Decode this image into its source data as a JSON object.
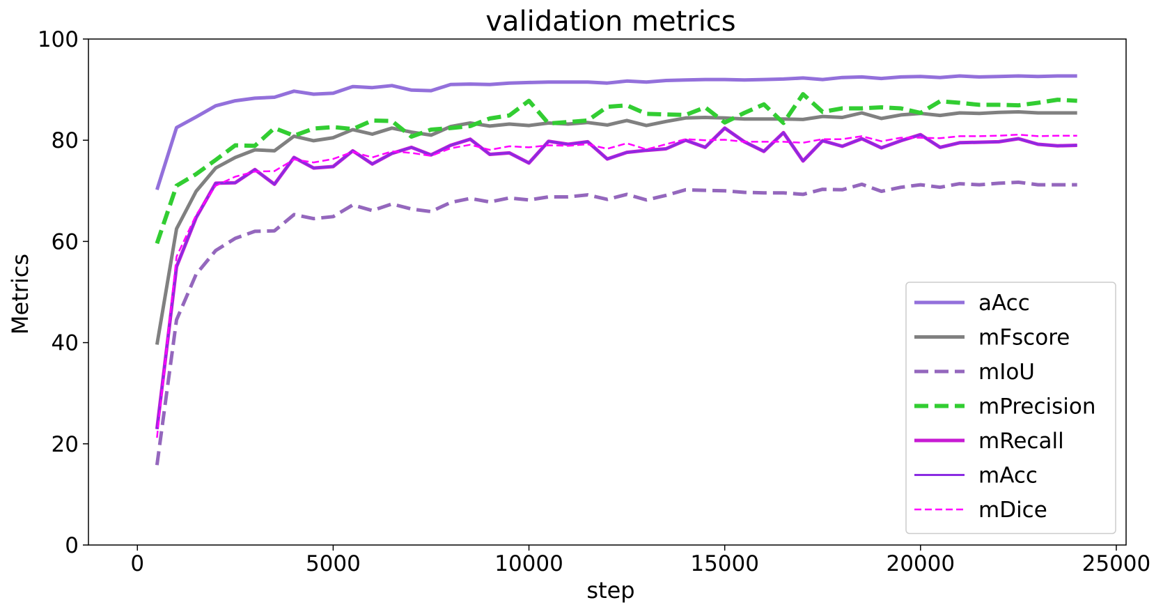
{
  "chart_data": {
    "type": "line",
    "title": "validation metrics",
    "xlabel": "step",
    "ylabel": "Metrics",
    "xlim": [
      -1250,
      25250
    ],
    "ylim": [
      0,
      100
    ],
    "xticks": [
      0,
      5000,
      10000,
      15000,
      20000,
      25000
    ],
    "yticks": [
      0,
      20,
      40,
      60,
      80,
      100
    ],
    "grid": false,
    "legend_position": "lower-right",
    "x": [
      500,
      1000,
      1500,
      2000,
      2500,
      3000,
      3500,
      4000,
      4500,
      5000,
      5500,
      6000,
      6500,
      7000,
      7500,
      8000,
      8500,
      9000,
      9500,
      10000,
      10500,
      11000,
      11500,
      12000,
      12500,
      13000,
      13500,
      14000,
      14500,
      15000,
      15500,
      16000,
      16500,
      17000,
      17500,
      18000,
      18500,
      19000,
      19500,
      20000,
      20500,
      21000,
      21500,
      22000,
      22500,
      23000,
      23500,
      24000
    ],
    "series": [
      {
        "name": "aAcc",
        "color": "#9370DB",
        "style": "solid",
        "width": 5,
        "values": [
          70.2,
          82.5,
          84.6,
          86.8,
          87.8,
          88.3,
          88.5,
          89.7,
          89.1,
          89.3,
          90.6,
          90.4,
          90.8,
          89.9,
          89.8,
          91.0,
          91.1,
          91.0,
          91.3,
          91.4,
          91.5,
          91.5,
          91.5,
          91.3,
          91.7,
          91.5,
          91.8,
          91.9,
          92.0,
          92.0,
          91.9,
          92.0,
          92.1,
          92.3,
          92.0,
          92.4,
          92.5,
          92.2,
          92.5,
          92.6,
          92.4,
          92.7,
          92.5,
          92.6,
          92.7,
          92.6,
          92.7,
          92.7
        ]
      },
      {
        "name": "mFscore",
        "color": "#808080",
        "style": "solid",
        "width": 5,
        "values": [
          39.6,
          62.5,
          69.9,
          74.5,
          76.6,
          78.1,
          77.9,
          80.8,
          79.9,
          80.5,
          82.1,
          81.2,
          82.4,
          81.6,
          81.0,
          82.7,
          83.4,
          82.8,
          83.2,
          82.9,
          83.4,
          83.2,
          83.5,
          83.0,
          83.9,
          82.9,
          83.7,
          84.4,
          84.5,
          84.4,
          84.2,
          84.2,
          84.2,
          84.1,
          84.7,
          84.5,
          85.4,
          84.3,
          85.0,
          85.3,
          84.9,
          85.4,
          85.3,
          85.5,
          85.6,
          85.4,
          85.4,
          85.4
        ]
      },
      {
        "name": "mIoU",
        "color": "#9467BD",
        "style": "dashed",
        "width": 5,
        "values": [
          15.8,
          44.5,
          53.5,
          58.2,
          60.6,
          62.0,
          62.1,
          65.3,
          64.5,
          64.9,
          67.2,
          66.1,
          67.4,
          66.4,
          65.9,
          67.7,
          68.5,
          67.8,
          68.6,
          68.2,
          68.8,
          68.8,
          69.2,
          68.3,
          69.3,
          68.2,
          69.1,
          70.2,
          70.1,
          70.0,
          69.7,
          69.6,
          69.6,
          69.3,
          70.3,
          70.2,
          71.3,
          69.9,
          70.7,
          71.2,
          70.7,
          71.4,
          71.2,
          71.5,
          71.7,
          71.2,
          71.2,
          71.2
        ]
      },
      {
        "name": "mPrecision",
        "color": "#32CD32",
        "style": "dashed",
        "width": 6,
        "values": [
          59.6,
          71.0,
          73.3,
          76.1,
          79.0,
          78.9,
          82.4,
          80.9,
          82.3,
          82.6,
          82.2,
          83.9,
          83.8,
          80.7,
          82.1,
          82.4,
          82.8,
          84.3,
          84.9,
          87.8,
          83.3,
          83.6,
          83.9,
          86.6,
          86.9,
          85.2,
          85.1,
          85.0,
          86.5,
          83.5,
          85.4,
          87.1,
          83.4,
          89.1,
          85.6,
          86.3,
          86.3,
          86.5,
          86.3,
          85.4,
          87.7,
          87.4,
          87.0,
          87.0,
          86.9,
          87.4,
          88.0,
          87.8
        ]
      },
      {
        "name": "mRecall",
        "color": "#C71BD3",
        "style": "solid",
        "width": 5,
        "values": [
          22.9,
          55.0,
          64.7,
          71.5,
          71.6,
          74.2,
          71.3,
          76.6,
          74.5,
          74.8,
          77.9,
          75.3,
          77.4,
          78.6,
          77.1,
          79.0,
          80.2,
          77.2,
          77.5,
          75.5,
          79.8,
          79.2,
          79.7,
          76.3,
          77.6,
          78.0,
          78.3,
          80.0,
          78.6,
          82.4,
          79.7,
          77.8,
          81.5,
          75.9,
          79.9,
          78.8,
          80.3,
          78.5,
          79.9,
          81.1,
          78.6,
          79.5,
          79.6,
          79.7,
          80.3,
          79.2,
          78.9,
          79.0
        ]
      },
      {
        "name": "mAcc",
        "color": "#8A2BE2",
        "style": "solid",
        "width": 3,
        "values": [
          22.9,
          55.0,
          64.7,
          71.5,
          71.6,
          74.2,
          71.3,
          76.6,
          74.5,
          74.8,
          77.9,
          75.3,
          77.4,
          78.6,
          77.1,
          79.0,
          80.2,
          77.2,
          77.5,
          75.5,
          79.8,
          79.2,
          79.7,
          76.3,
          77.6,
          78.0,
          78.3,
          80.0,
          78.6,
          82.4,
          79.7,
          77.8,
          81.5,
          75.9,
          79.9,
          78.8,
          80.3,
          78.5,
          79.9,
          81.1,
          78.6,
          79.5,
          79.6,
          79.7,
          80.3,
          79.2,
          78.9,
          79.0
        ]
      },
      {
        "name": "mDice",
        "color": "#FF00FF",
        "style": "dashed-thin",
        "width": 2.5,
        "values": [
          21.2,
          57.0,
          65.2,
          71.0,
          72.8,
          73.8,
          73.9,
          76.2,
          75.6,
          76.3,
          77.7,
          76.6,
          77.8,
          77.5,
          76.9,
          78.4,
          79.1,
          78.1,
          78.8,
          78.6,
          79.0,
          78.9,
          79.2,
          78.3,
          79.4,
          78.2,
          79.2,
          80.2,
          80.0,
          80.1,
          79.7,
          79.7,
          79.7,
          79.5,
          80.2,
          80.2,
          80.8,
          79.8,
          80.5,
          80.5,
          80.4,
          80.8,
          80.8,
          80.9,
          81.1,
          80.8,
          80.9,
          80.9
        ]
      }
    ]
  }
}
